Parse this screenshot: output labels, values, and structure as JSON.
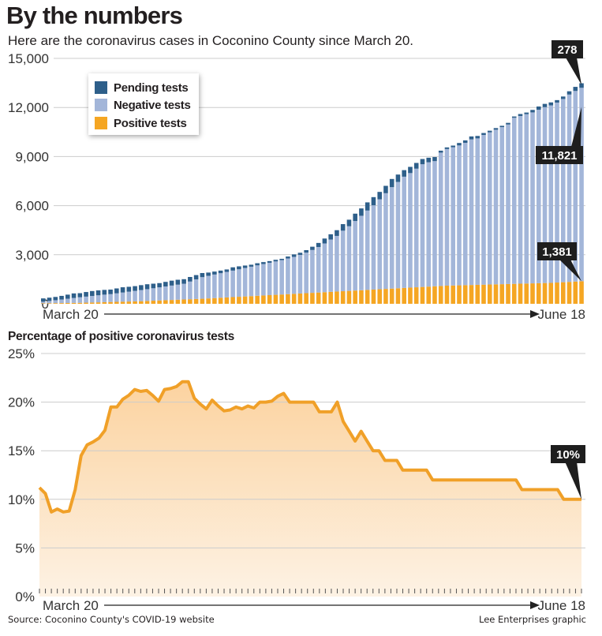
{
  "header": {
    "title": "By the numbers",
    "subtitle": "Here are the coronavirus cases in Coconino County since March 20."
  },
  "footer": {
    "source": "Source: Coconino County's COVID-19 website",
    "credit": "Lee Enterprises graphic"
  },
  "colors": {
    "pending": "#2e5f8a",
    "negative": "#a3b6d9",
    "positive": "#f5a623",
    "line": "#f0a028",
    "area_top": "#fcd3a0",
    "area_bottom": "#fdf2e4",
    "callout_bg": "#1e1e1e",
    "grid": "#cccccc"
  },
  "chart_data": [
    {
      "type": "bar",
      "stacked": true,
      "title": "",
      "xlabel": "",
      "ylabel": "",
      "x_start_label": "March 20",
      "x_end_label": "June 18",
      "ylim": [
        0,
        15000
      ],
      "yticks": [
        0,
        3000,
        6000,
        9000,
        12000,
        15000
      ],
      "ytick_labels": [
        "0",
        "3,000",
        "6,000",
        "9,000",
        "12,000",
        "15,000"
      ],
      "grid": true,
      "legend_position": "top-left",
      "legend": [
        "Pending tests",
        "Negative tests",
        "Positive tests"
      ],
      "series": [
        {
          "name": "Positive tests",
          "values": [
            30,
            35,
            40,
            45,
            50,
            55,
            60,
            70,
            80,
            90,
            100,
            110,
            120,
            130,
            140,
            150,
            160,
            175,
            190,
            205,
            220,
            235,
            250,
            265,
            280,
            295,
            310,
            330,
            350,
            370,
            390,
            410,
            430,
            450,
            470,
            490,
            510,
            530,
            550,
            570,
            590,
            610,
            630,
            650,
            670,
            690,
            710,
            730,
            750,
            770,
            790,
            810,
            830,
            850,
            870,
            890,
            910,
            930,
            950,
            970,
            990,
            1010,
            1030,
            1050,
            1070,
            1090,
            1110,
            1120,
            1130,
            1140,
            1150,
            1160,
            1170,
            1180,
            1190,
            1200,
            1210,
            1220,
            1230,
            1240,
            1250,
            1260,
            1270,
            1280,
            1300,
            1320,
            1340,
            1360,
            1381
          ]
        },
        {
          "name": "Negative tests",
          "values": [
            100,
            140,
            180,
            220,
            260,
            300,
            340,
            370,
            400,
            430,
            460,
            480,
            520,
            560,
            600,
            640,
            680,
            720,
            760,
            800,
            840,
            880,
            920,
            960,
            1080,
            1200,
            1320,
            1380,
            1440,
            1500,
            1560,
            1620,
            1680,
            1740,
            1800,
            1860,
            1920,
            1980,
            2040,
            2100,
            2180,
            2260,
            2360,
            2480,
            2620,
            2780,
            2980,
            3200,
            3400,
            3700,
            3950,
            4250,
            4550,
            4850,
            5150,
            5500,
            5850,
            6200,
            6500,
            6800,
            7000,
            7250,
            7500,
            7600,
            7650,
            8150,
            8350,
            8450,
            8550,
            8700,
            8900,
            8950,
            9150,
            9300,
            9450,
            9600,
            9750,
            10150,
            10250,
            10350,
            10450,
            10600,
            10750,
            10850,
            11000,
            11200,
            11450,
            11650,
            11821
          ]
        },
        {
          "name": "Pending tests",
          "values": [
            200,
            200,
            200,
            220,
            250,
            280,
            250,
            280,
            300,
            300,
            290,
            280,
            300,
            320,
            300,
            290,
            300,
            300,
            280,
            260,
            280,
            300,
            300,
            280,
            280,
            260,
            250,
            200,
            180,
            160,
            150,
            200,
            180,
            150,
            120,
            130,
            120,
            100,
            100,
            80,
            120,
            150,
            130,
            150,
            200,
            250,
            300,
            320,
            350,
            400,
            400,
            450,
            450,
            500,
            500,
            450,
            450,
            500,
            450,
            400,
            380,
            350,
            320,
            280,
            250,
            120,
            100,
            100,
            150,
            150,
            180,
            150,
            120,
            100,
            100,
            80,
            100,
            80,
            120,
            100,
            150,
            200,
            200,
            180,
            150,
            150,
            200,
            250,
            278
          ]
        }
      ],
      "annotations": [
        {
          "label": "278",
          "series": "Pending tests",
          "index": 88
        },
        {
          "label": "11,821",
          "series": "Negative tests",
          "index": 88
        },
        {
          "label": "1,381",
          "series": "Positive tests",
          "index": 88
        }
      ]
    },
    {
      "type": "area",
      "title": "Percentage of positive coronavirus tests",
      "xlabel": "",
      "ylabel": "",
      "x_start_label": "March 20",
      "x_end_label": "June 18",
      "ylim": [
        0,
        25
      ],
      "yticks": [
        0,
        5,
        10,
        15,
        20,
        25
      ],
      "ytick_labels": [
        "0%",
        "5%",
        "10%",
        "15%",
        "20%",
        "25%"
      ],
      "grid": true,
      "series": [
        {
          "name": "Percent positive",
          "values": [
            11.2,
            10.6,
            8.7,
            9.0,
            8.7,
            8.8,
            11.0,
            14.5,
            15.6,
            15.9,
            16.3,
            17.1,
            19.5,
            19.5,
            20.3,
            20.7,
            21.3,
            21.1,
            21.2,
            20.7,
            20.1,
            21.3,
            21.4,
            21.6,
            22.1,
            22.1,
            20.4,
            19.8,
            19.3,
            20.2,
            19.6,
            19.1,
            19.2,
            19.5,
            19.3,
            19.6,
            19.4,
            20.0,
            20.0,
            20.1,
            20.6,
            20.9,
            20.0,
            20.0,
            20.0,
            20.0,
            20.0,
            19.0,
            19.0,
            19.0,
            20.0,
            18.0,
            17.0,
            16.0,
            17.0,
            16.0,
            15.0,
            15.0,
            14.0,
            14.0,
            14.0,
            13.0,
            13.0,
            13.0,
            13.0,
            13.0,
            12.0,
            12.0,
            12.0,
            12.0,
            12.0,
            12.0,
            12.0,
            12.0,
            12.0,
            12.0,
            12.0,
            12.0,
            12.0,
            12.0,
            12.0,
            11.0,
            11.0,
            11.0,
            11.0,
            11.0,
            11.0,
            11.0,
            10.0,
            10.0,
            10.0,
            10.0
          ]
        }
      ],
      "annotations": [
        {
          "label": "10%",
          "index": 91
        }
      ]
    }
  ]
}
